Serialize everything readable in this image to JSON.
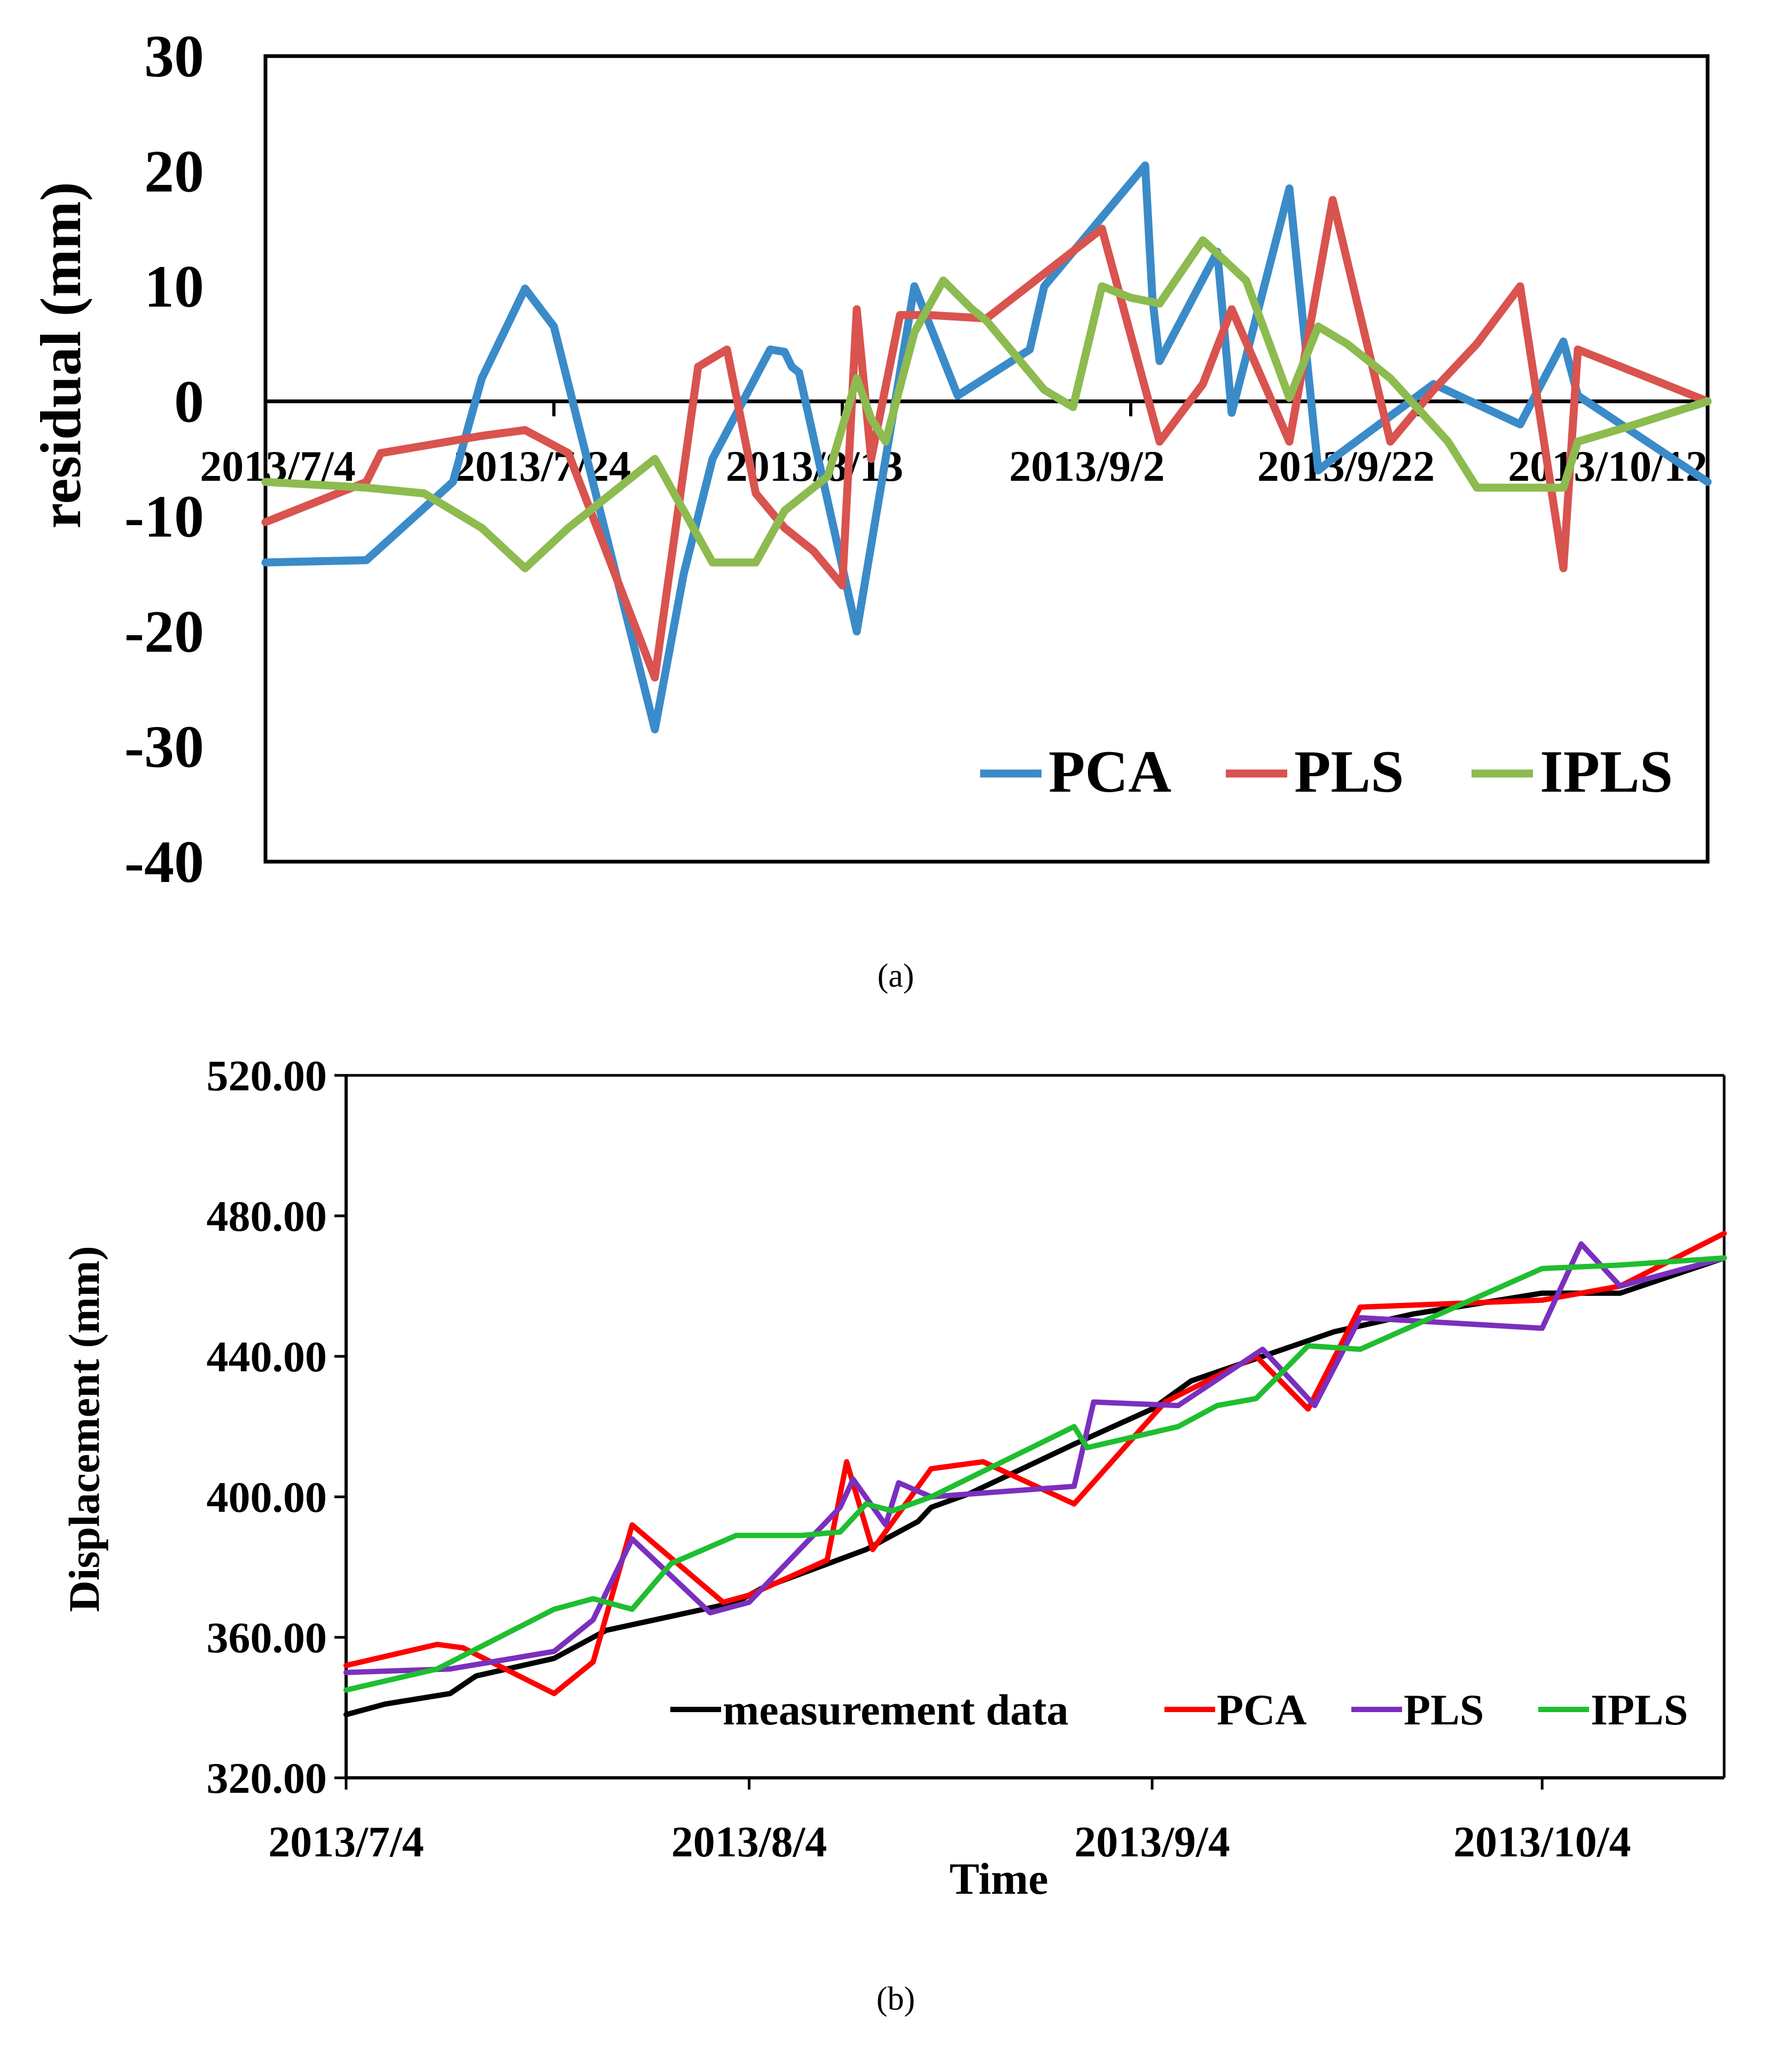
{
  "captions": {
    "a": "(a)",
    "b": "(b)"
  },
  "colors": {
    "axis": "#000000",
    "a_PCA": "#3b8bc9",
    "a_PLS": "#d9534f",
    "a_IPLS": "#8dbb4f",
    "b_measurement": "#000000",
    "b_PCA": "#ff0000",
    "b_PLS": "#7b2fbe",
    "b_IPLS": "#1fbe2f"
  },
  "chart_data": [
    {
      "type": "line",
      "title": "",
      "xlabel": "",
      "ylabel": "residual (mm)",
      "ylim": [
        -40,
        30
      ],
      "yticks": [
        30,
        20,
        10,
        0,
        -10,
        -20,
        -30,
        -40
      ],
      "x_tick_labels": [
        "2013/7/4",
        "2013/7/24",
        "2013/8/13",
        "2013/9/2",
        "2013/9/22",
        "2013/10/12"
      ],
      "x_range_days": [
        0,
        100
      ],
      "zero_line": true,
      "legend_placement": "bottom-right",
      "series": [
        {
          "name": "PCA",
          "x": [
            0,
            7,
            13,
            15,
            18,
            20,
            27,
            29,
            31,
            35,
            36,
            36.5,
            37,
            41,
            45,
            48,
            53,
            54,
            61,
            61.5,
            62,
            66,
            67,
            71,
            73,
            74,
            81,
            87,
            90,
            91,
            100
          ],
          "y": [
            -14,
            -13.8,
            -7,
            2,
            9.8,
            6.5,
            -28.5,
            -15,
            -5,
            4.5,
            4.3,
            3,
            2.5,
            -20,
            10,
            0.5,
            4.5,
            10,
            20.5,
            9,
            3.5,
            13,
            -1,
            18.5,
            -6,
            -5,
            1.5,
            -2,
            5.2,
            0.5,
            -7
          ]
        },
        {
          "name": "PLS",
          "x": [
            0,
            7,
            8,
            15,
            18,
            21,
            27,
            30,
            32,
            34,
            36,
            38,
            40,
            41,
            42,
            44,
            46,
            50,
            58,
            62,
            65,
            67,
            71,
            74,
            78,
            81,
            84,
            87,
            90,
            91,
            100
          ],
          "y": [
            -10.5,
            -7,
            -4.5,
            -3,
            -2.5,
            -4.5,
            -24,
            3,
            4.5,
            -8,
            -11,
            -13,
            -16,
            8,
            -5,
            7.5,
            7.5,
            7.2,
            15,
            -3.5,
            1.5,
            8,
            -3.5,
            17.5,
            -3.5,
            1,
            5,
            10,
            -14.5,
            4.5,
            0
          ]
        },
        {
          "name": "IPLS",
          "x": [
            0,
            7,
            11,
            15,
            18,
            21,
            27,
            31,
            34,
            36,
            39,
            41,
            42,
            43,
            45,
            47,
            49,
            50,
            54,
            56,
            58,
            60,
            62,
            65,
            68,
            71,
            73,
            75,
            78,
            82,
            84,
            87,
            90,
            91,
            95,
            100
          ],
          "y": [
            -7,
            -7.5,
            -8,
            -11,
            -14.5,
            -11,
            -5,
            -14,
            -14,
            -9.5,
            -6.5,
            2,
            -1.5,
            -3.5,
            6,
            10.5,
            8,
            7,
            1,
            -0.5,
            10,
            9,
            8.5,
            14,
            10.5,
            0.3,
            6.5,
            5,
            2,
            -3.5,
            -7.5,
            -7.5,
            -7.5,
            -3.5,
            -2,
            0
          ]
        }
      ]
    },
    {
      "type": "line",
      "title": "",
      "xlabel": "Time",
      "ylabel": "Displacement  (mm)",
      "ylim": [
        320,
        520
      ],
      "yticks": [
        "320.00",
        "360.00",
        "400.00",
        "440.00",
        "480.00",
        "520.00"
      ],
      "x_tick_labels": [
        "2013/7/4",
        "2013/8/4",
        "2013/9/4",
        "2013/10/4"
      ],
      "x_ticks_days": [
        0,
        31,
        62,
        92
      ],
      "x_range_days": [
        0,
        106
      ],
      "grid": false,
      "legend_placement": "bottom-right",
      "series": [
        {
          "name": "measurement data",
          "x": [
            0,
            3,
            8,
            10,
            16,
            20,
            30,
            32,
            40,
            44,
            45,
            48,
            56,
            62,
            65,
            76,
            82,
            92,
            98,
            106
          ],
          "y": [
            338,
            341,
            344,
            349,
            354,
            362,
            370,
            374,
            385,
            393,
            397,
            401,
            415,
            425,
            433,
            447,
            452,
            458,
            458,
            468
          ]
        },
        {
          "name": "PCA",
          "x": [
            0,
            7,
            9,
            16,
            19,
            22,
            29,
            31,
            37,
            38.5,
            40.5,
            45,
            49,
            56,
            63,
            70,
            74,
            78,
            92,
            98,
            106
          ],
          "y": [
            352,
            358,
            357,
            344,
            353,
            392,
            370,
            372,
            382,
            410,
            385,
            408,
            410,
            398,
            427,
            440,
            425,
            454,
            456,
            460,
            475
          ]
        },
        {
          "name": "PLS",
          "x": [
            0,
            8,
            16,
            19,
            22,
            28,
            31,
            38,
            39,
            41.5,
            42.5,
            45,
            56,
            57.5,
            64,
            70.5,
            74.5,
            78,
            92,
            95,
            98,
            106
          ],
          "y": [
            350,
            351,
            356,
            365,
            388,
            367,
            370,
            397,
            405,
            392,
            404,
            400,
            403,
            427,
            426,
            442,
            426,
            451,
            448,
            472,
            460,
            468
          ]
        },
        {
          "name": "IPLS",
          "x": [
            0,
            7,
            16,
            19,
            22,
            25,
            30,
            35,
            38,
            40,
            42,
            45,
            56,
            57,
            64,
            67,
            70,
            74,
            78,
            92,
            98,
            106
          ],
          "y": [
            345,
            351,
            368,
            371,
            368,
            381,
            389,
            389,
            390,
            398,
            396,
            400,
            420,
            414,
            420,
            426,
            428,
            443,
            442,
            465,
            466,
            468
          ]
        }
      ]
    }
  ]
}
